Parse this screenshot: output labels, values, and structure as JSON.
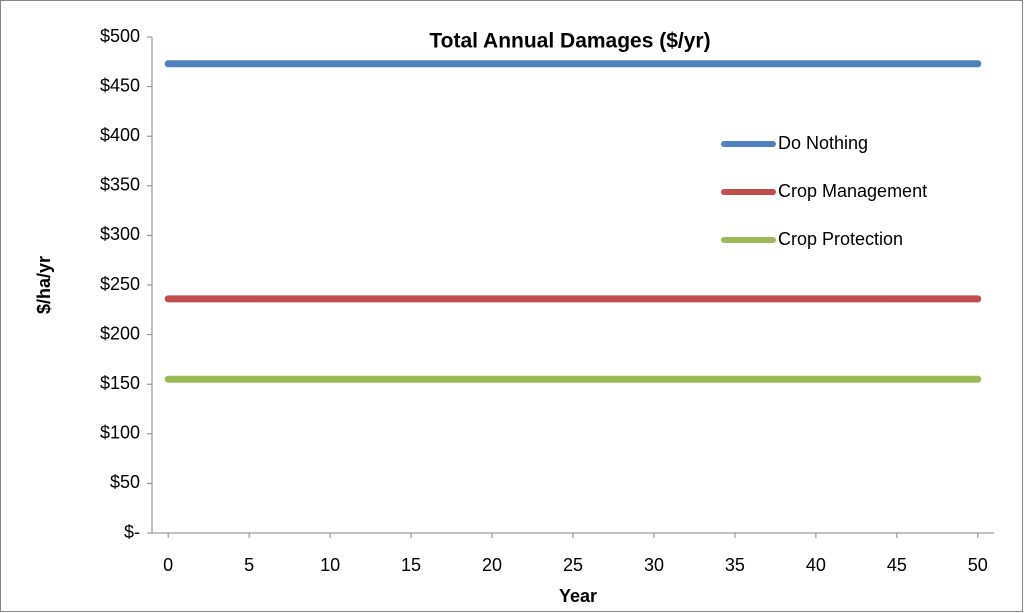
{
  "chart_data": {
    "type": "line",
    "title": "Total Annual Damages ($/yr)",
    "x_label": "Year",
    "y_label": "$/ha/yr",
    "x": [
      0,
      50
    ],
    "series": [
      {
        "name": "Do Nothing",
        "color": "#4f81bd",
        "values": [
          473,
          473
        ]
      },
      {
        "name": "Crop Management",
        "color": "#c0504d",
        "values": [
          236,
          236
        ]
      },
      {
        "name": "Crop Protection",
        "color": "#9bbb59",
        "values": [
          155,
          155
        ]
      }
    ],
    "xlim": [
      -1,
      51
    ],
    "xticks": [
      0,
      5,
      10,
      15,
      20,
      25,
      30,
      35,
      40,
      45,
      50
    ],
    "ylim": [
      0,
      500
    ],
    "yticks": [
      {
        "value": 0,
        "label": "$-"
      },
      {
        "value": 50,
        "label": "$50"
      },
      {
        "value": 100,
        "label": "$100"
      },
      {
        "value": 150,
        "label": "$150"
      },
      {
        "value": 200,
        "label": "$200"
      },
      {
        "value": 250,
        "label": "$250"
      },
      {
        "value": 300,
        "label": "$300"
      },
      {
        "value": 350,
        "label": "$350"
      },
      {
        "value": 400,
        "label": "$400"
      },
      {
        "value": 450,
        "label": "$450"
      },
      {
        "value": 500,
        "label": "$500"
      }
    ],
    "grid": false,
    "legend": "right"
  }
}
